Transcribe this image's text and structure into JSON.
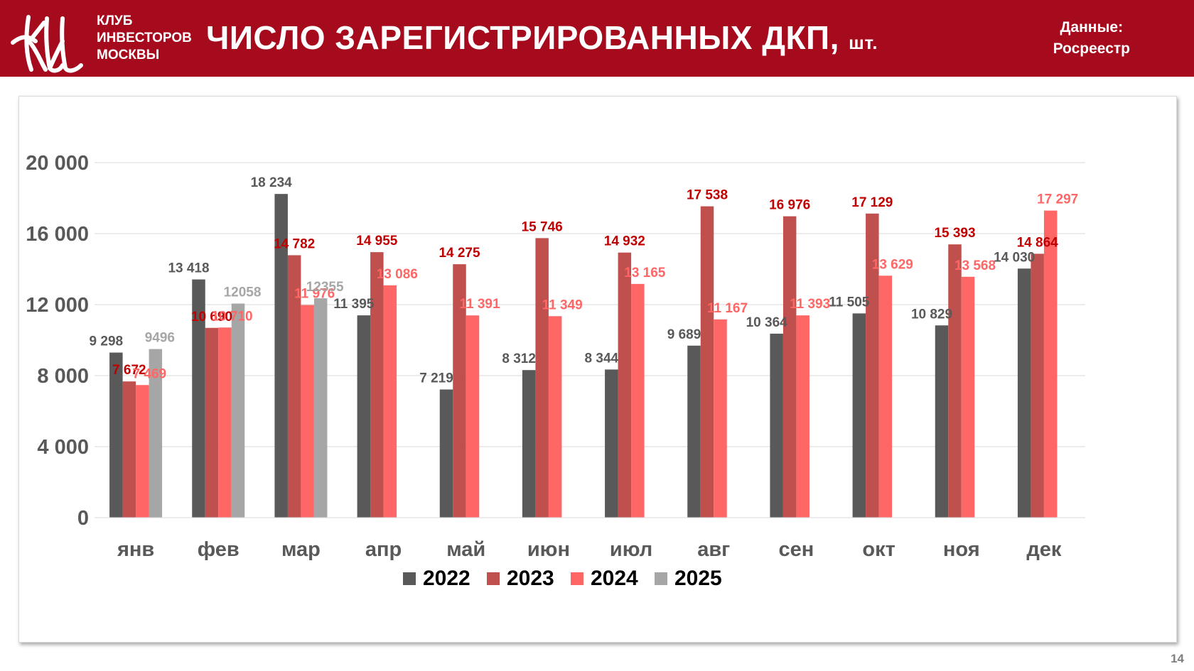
{
  "header": {
    "club_name": [
      "КЛУБ",
      "ИНВЕСТОРОВ",
      "МОСКВЫ"
    ],
    "title": "ЧИСЛО ЗАРЕГИСТРИРОВАННЫХ ДКП,",
    "title_unit": "шт.",
    "source_line1": "Данные:",
    "source_line2": "Росреестр"
  },
  "page_number": "14",
  "chart_data": {
    "type": "bar",
    "categories": [
      "янв",
      "фев",
      "мар",
      "апр",
      "май",
      "июн",
      "июл",
      "авг",
      "сен",
      "окт",
      "ноя",
      "дек"
    ],
    "ylim": [
      0,
      20000
    ],
    "yticks": [
      0,
      4000,
      8000,
      12000,
      16000,
      20000
    ],
    "ytick_labels": [
      "0",
      "4 000",
      "8 000",
      "12 000",
      "16 000",
      "20 000"
    ],
    "grid": true,
    "legend_position": "bottom",
    "series": [
      {
        "name": "2022",
        "color": "#595959",
        "label_color": "#595959",
        "values": [
          9298,
          13418,
          18234,
          11395,
          7219,
          8312,
          8344,
          9689,
          10364,
          11505,
          10829,
          14030
        ],
        "labels": [
          "9 298",
          "13 418",
          "18 234",
          "11 395",
          "7 219",
          "8 312",
          "8 344",
          "9 689",
          "10 364",
          "11 505",
          "10 829",
          "14 030"
        ]
      },
      {
        "name": "2023",
        "color": "#c0504d",
        "label_color": "#c00000",
        "values": [
          7672,
          10690,
          14782,
          14955,
          14275,
          15746,
          14932,
          17538,
          16976,
          17129,
          15393,
          14864
        ],
        "labels": [
          "7 672",
          "10 690",
          "14 782",
          "14 955",
          "14 275",
          "15 746",
          "14 932",
          "17 538",
          "16 976",
          "17 129",
          "15 393",
          "14 864"
        ]
      },
      {
        "name": "2024",
        "color": "#ff6666",
        "label_color": "#ff6666",
        "values": [
          7469,
          10710,
          11976,
          13086,
          11391,
          11349,
          13165,
          11167,
          11393,
          13629,
          13568,
          17297
        ],
        "labels": [
          "7 469",
          "10 710",
          "11 976",
          "13 086",
          "11 391",
          "11 349",
          "13 165",
          "11 167",
          "11 393",
          "13 629",
          "13 568",
          "17 297"
        ]
      },
      {
        "name": "2025",
        "color": "#a6a6a6",
        "label_color": "#a6a6a6",
        "values": [
          9496,
          12058,
          12355,
          null,
          null,
          null,
          null,
          null,
          null,
          null,
          null,
          null
        ],
        "labels": [
          "9496",
          "12058",
          "12355",
          null,
          null,
          null,
          null,
          null,
          null,
          null,
          null,
          null
        ]
      }
    ]
  }
}
